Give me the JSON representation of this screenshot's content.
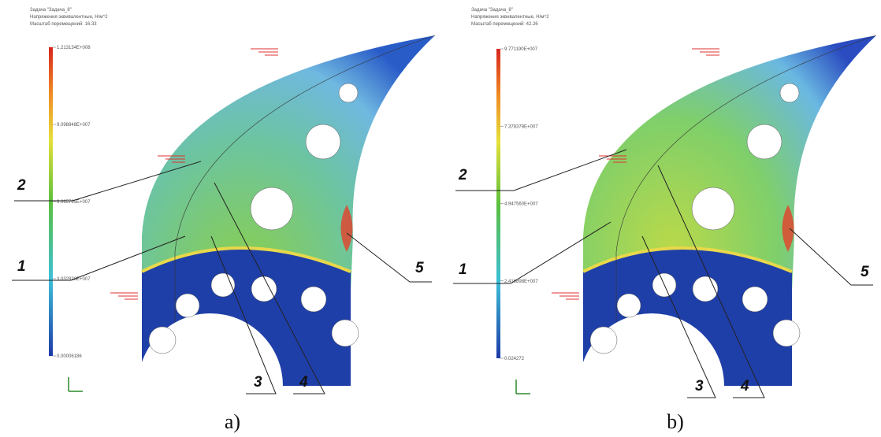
{
  "panels": [
    {
      "caption": "a)",
      "legend": {
        "header": [
          "Задача \"Задача_8\"",
          "Напряжения эквивалентные, Н/м^2",
          "Масштаб перемещений: 16.33"
        ],
        "ticks": [
          "1.213134E+008",
          "9.098848E+007",
          "6.065765E+007",
          "3.032828E+007",
          "0.00006186"
        ]
      },
      "callouts": [
        "1",
        "2",
        "3",
        "4",
        "5"
      ]
    },
    {
      "caption": "b)",
      "legend": {
        "header": [
          "Задача \"Задача_8\"",
          "Напряжения эквивалентные, Н/м^2",
          "Масштаб перемещений: 42.26"
        ],
        "ticks": [
          "9.771190E+007",
          "7.378378E+007",
          "4.947560E+007",
          "2.416898E+007",
          "0.024272"
        ]
      },
      "callouts": [
        "1",
        "2",
        "3",
        "4",
        "5"
      ]
    }
  ]
}
